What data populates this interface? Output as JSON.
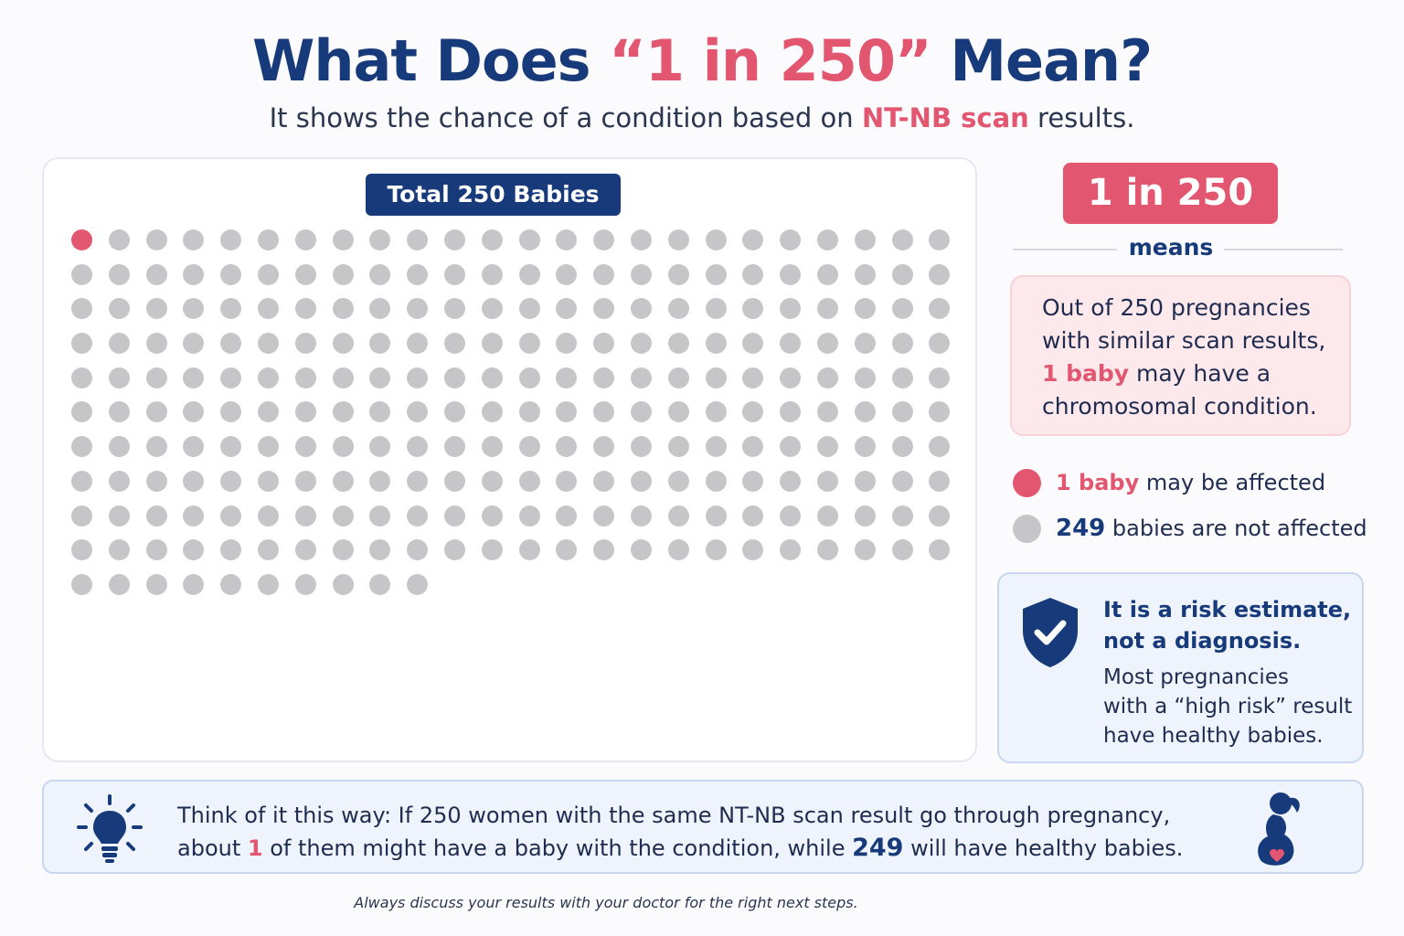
{
  "header": {
    "title_before": "What Does ",
    "title_highlight": "“1 in 250”",
    "title_after": " Mean?",
    "subtitle_before": "It shows the chance of a condition based on ",
    "subtitle_highlight": "NT-NB scan",
    "subtitle_after": " results."
  },
  "grid": {
    "badge": "Total 250 Babies",
    "total": 250,
    "affected": 1,
    "columns": 24
  },
  "ratio": {
    "badge": "1 in 250",
    "means": "means",
    "explain_line1": "Out of 250 pregnancies",
    "explain_line2": "with similar scan results,",
    "explain_highlight": "1 baby",
    "explain_line3_rest": " may have a",
    "explain_line4": "chromosomal condition."
  },
  "legend": {
    "affected_num": "1 baby",
    "affected_text": " may be affected",
    "unaffected_num": "249",
    "unaffected_text": " babies are not affected"
  },
  "info": {
    "heading_line1": "It is a risk estimate,",
    "heading_line2": "not a diagnosis.",
    "body_line1": "Most pregnancies",
    "body_line2": "with a “high risk” result",
    "body_line3": "have healthy babies."
  },
  "bottom": {
    "line1": "Think of it this way: If 250 women with the same NT-NB scan result go through pregnancy,",
    "line2_a": "about ",
    "line2_num1": "1",
    "line2_b": " of them might have a baby with the condition, while ",
    "line2_num2": "249",
    "line2_c": " will have healthy babies."
  },
  "footnote": "Always discuss your results with your doctor for the right next steps.",
  "colors": {
    "navy": "#173a7a",
    "pink": "#e2566f",
    "gray_dot": "#c6c6c9",
    "pink_bg": "#fde9ec",
    "blue_bg": "#eef3fc"
  },
  "icons": [
    "shield-check-icon",
    "lightbulb-icon",
    "pregnant-woman-icon"
  ]
}
